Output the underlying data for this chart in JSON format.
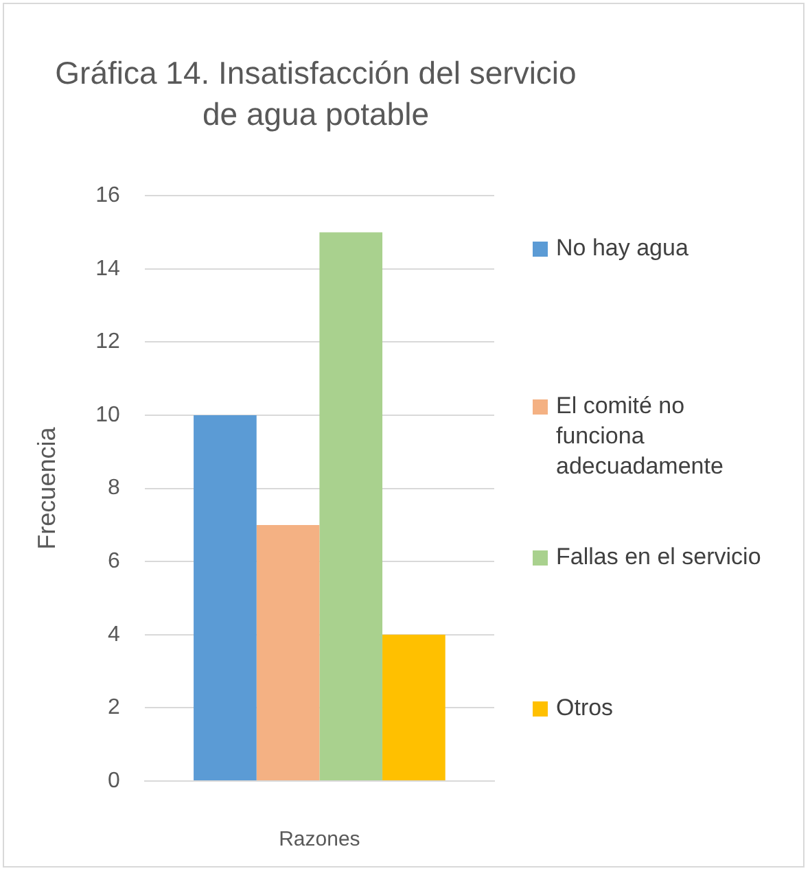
{
  "chart_data": {
    "type": "bar",
    "title": "Gráfica 14. Insatisfacción del servicio de agua potable",
    "ylabel": "Frecuencia",
    "xlabel": "Razones",
    "categories": [
      null
    ],
    "series": [
      {
        "name": "No hay agua",
        "color": "#5b9bd5",
        "values": [
          10
        ]
      },
      {
        "name": "El comité no funciona adecuadamente",
        "color": "#f4b183",
        "values": [
          7
        ]
      },
      {
        "name": "Fallas en el servicio",
        "color": "#a9d18e",
        "values": [
          15
        ]
      },
      {
        "name": "Otros",
        "color": "#ffc000",
        "values": [
          4
        ]
      }
    ],
    "ylim": [
      0,
      16
    ],
    "yticks": [
      0,
      2,
      4,
      6,
      8,
      10,
      12,
      14,
      16
    ],
    "grid": "y",
    "legend": "right"
  }
}
